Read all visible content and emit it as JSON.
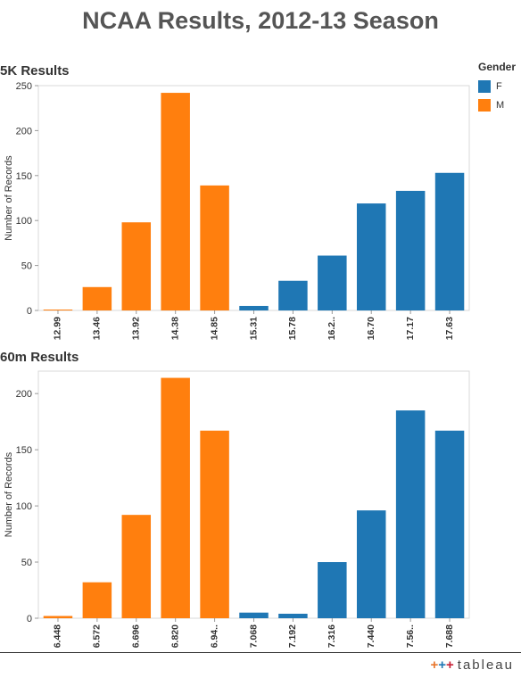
{
  "title": "NCAA Results, 2012-13 Season",
  "legend": {
    "title": "Gender",
    "items": [
      {
        "label": "F",
        "color": "#1f77b4"
      },
      {
        "label": "M",
        "color": "#ff7f0e"
      }
    ]
  },
  "brand": {
    "name": "tableau",
    "mark_icon": "tableau-cross-icon"
  },
  "chart_data": [
    {
      "type": "bar",
      "title": "5K Results",
      "ylabel": "Number of Records",
      "xlabel": "",
      "ylim": [
        0,
        250
      ],
      "yticks": [
        0,
        50,
        100,
        150,
        200,
        250
      ],
      "grid": false,
      "categories": [
        "12.99",
        "13.46",
        "13.92",
        "14.38",
        "14.85",
        "15.31",
        "15.78",
        "16.2..",
        "16.70",
        "17.17",
        "17.63"
      ],
      "values": [
        1,
        26,
        98,
        242,
        139,
        5,
        33,
        61,
        119,
        133,
        153
      ],
      "genders": [
        "M",
        "M",
        "M",
        "M",
        "M",
        "F",
        "F",
        "F",
        "F",
        "F",
        "F"
      ]
    },
    {
      "type": "bar",
      "title": "60m Results",
      "ylabel": "Number of Records",
      "xlabel": "",
      "ylim": [
        0,
        220
      ],
      "yticks": [
        0,
        50,
        100,
        150,
        200
      ],
      "grid": false,
      "categories": [
        "6.448",
        "6.572",
        "6.696",
        "6.820",
        "6.94..",
        "7.068",
        "7.192",
        "7.316",
        "7.440",
        "7.56..",
        "7.688"
      ],
      "values": [
        2,
        32,
        92,
        214,
        167,
        5,
        4,
        50,
        96,
        185,
        167
      ],
      "genders": [
        "M",
        "M",
        "M",
        "M",
        "M",
        "F",
        "F",
        "F",
        "F",
        "F",
        "F"
      ]
    }
  ]
}
